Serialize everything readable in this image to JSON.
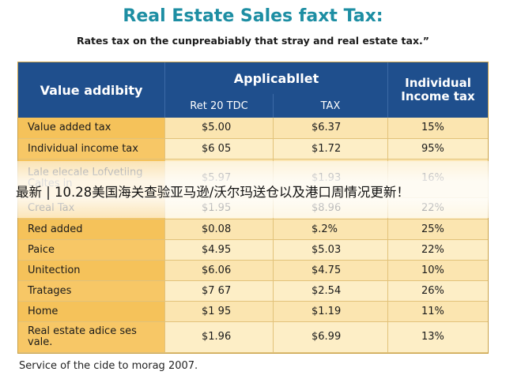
{
  "title": "Real Estate Sales faxt Tax:",
  "subtitle": "Rates tax on the cunpreabiably that stray and real estate tax.”",
  "table": {
    "header": {
      "first": "Value addibity",
      "group": "Applicabllet",
      "sub": [
        "Ret 20 TDC",
        "TAX"
      ],
      "last": "Individual Income tax"
    },
    "rows": [
      [
        "Value added tax",
        "$5.00",
        "$6.37",
        "15%"
      ],
      [
        "Individual income tax",
        "$6 05",
        "$1.72",
        "95%"
      ],
      [
        "Lale elecale Lofvetiing Caltes in",
        "$5.97",
        "$1.93",
        "16%"
      ],
      [
        "Creal Tax",
        "$1.95",
        "$8.96",
        "22%"
      ],
      [
        "Red added",
        "$0.08",
        "$.2%",
        "25%"
      ],
      [
        "Paice",
        "$4.95",
        "$5.03",
        "22%"
      ],
      [
        "Unitection",
        "$6.06",
        "$4.75",
        "10%"
      ],
      [
        "Tratages",
        "$7 67",
        "$2.54",
        "26%"
      ],
      [
        "Home",
        "$1 95",
        "$1.19",
        "11%"
      ],
      [
        "Real estate adice ses vale.",
        "$1.96",
        "$6.99",
        "13%"
      ]
    ]
  },
  "footer": "Service of the cide to morag 2007.",
  "banner": "最新 | 10.28美国海关查验亚马逊/沃尔玛送仓以及港口周情况更新！"
}
